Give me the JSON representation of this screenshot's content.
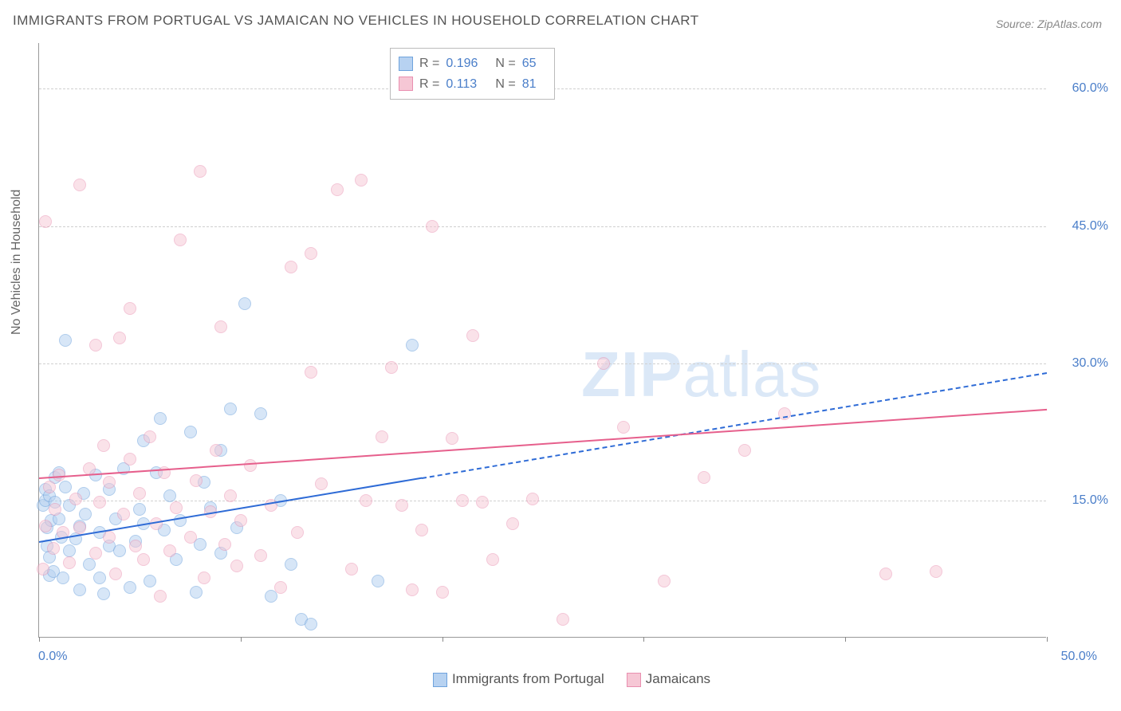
{
  "title": "IMMIGRANTS FROM PORTUGAL VS JAMAICAN NO VEHICLES IN HOUSEHOLD CORRELATION CHART",
  "source_prefix": "Source: ",
  "source_name": "ZipAtlas.com",
  "ylabel": "No Vehicles in Household",
  "watermark_bold": "ZIP",
  "watermark_light": "atlas",
  "chart": {
    "type": "scatter",
    "xlim": [
      0,
      50
    ],
    "ylim": [
      0,
      65
    ],
    "ytick_values": [
      15,
      30,
      45,
      60
    ],
    "ytick_labels": [
      "15.0%",
      "30.0%",
      "45.0%",
      "60.0%"
    ],
    "xtick_values": [
      0,
      10,
      20,
      30,
      40,
      50
    ],
    "x_axis_start_label": "0.0%",
    "x_axis_end_label": "50.0%",
    "background_color": "#ffffff",
    "grid_color": "#d0d0d0",
    "axis_label_color": "#4a7ec9",
    "marker_radius": 8,
    "series": [
      {
        "name": "Immigrants from Portugal",
        "fill_color": "#b7d2f1",
        "stroke_color": "#6fa3dd",
        "trend_color": "#2e6bd6",
        "fill_opacity": 0.55,
        "r": "0.196",
        "n": "65",
        "trend": {
          "x1": 0,
          "y1": 10.5,
          "x2": 19,
          "y2": 17.5,
          "dash_to_x": 50,
          "dash_to_y": 29
        },
        "points": [
          [
            0.2,
            14.5
          ],
          [
            0.3,
            15
          ],
          [
            0.3,
            16.2
          ],
          [
            0.4,
            10
          ],
          [
            0.4,
            12
          ],
          [
            0.5,
            6.8
          ],
          [
            0.5,
            8.8
          ],
          [
            0.5,
            15.5
          ],
          [
            0.6,
            12.8
          ],
          [
            0.7,
            7.2
          ],
          [
            0.8,
            14.8
          ],
          [
            0.8,
            17.5
          ],
          [
            1,
            18
          ],
          [
            1,
            13
          ],
          [
            1.1,
            11
          ],
          [
            1.2,
            6.5
          ],
          [
            1.3,
            32.5
          ],
          [
            1.3,
            16.5
          ],
          [
            1.5,
            9.5
          ],
          [
            1.5,
            14.5
          ],
          [
            1.8,
            10.8
          ],
          [
            2,
            5.2
          ],
          [
            2,
            12.2
          ],
          [
            2.2,
            15.8
          ],
          [
            2.3,
            13.5
          ],
          [
            2.5,
            8
          ],
          [
            2.8,
            17.8
          ],
          [
            3,
            6.5
          ],
          [
            3,
            11.5
          ],
          [
            3.2,
            4.8
          ],
          [
            3.5,
            10
          ],
          [
            3.5,
            16.2
          ],
          [
            3.8,
            13
          ],
          [
            4,
            9.5
          ],
          [
            4.2,
            18.5
          ],
          [
            4.5,
            5.5
          ],
          [
            4.8,
            10.5
          ],
          [
            5,
            14
          ],
          [
            5.2,
            21.5
          ],
          [
            5.2,
            12.5
          ],
          [
            5.5,
            6.2
          ],
          [
            5.8,
            18
          ],
          [
            6,
            24
          ],
          [
            6.2,
            11.8
          ],
          [
            6.5,
            15.5
          ],
          [
            6.8,
            8.5
          ],
          [
            7,
            12.8
          ],
          [
            7.5,
            22.5
          ],
          [
            7.8,
            5
          ],
          [
            8,
            10.2
          ],
          [
            8.2,
            17
          ],
          [
            8.5,
            14.2
          ],
          [
            9,
            20.5
          ],
          [
            9,
            9.2
          ],
          [
            9.5,
            25
          ],
          [
            9.8,
            12
          ],
          [
            10.2,
            36.5
          ],
          [
            11,
            24.5
          ],
          [
            11.5,
            4.5
          ],
          [
            12,
            15
          ],
          [
            12.5,
            8
          ],
          [
            13,
            2
          ],
          [
            13.5,
            1.5
          ],
          [
            16.8,
            6.2
          ],
          [
            18.5,
            32
          ]
        ]
      },
      {
        "name": "Jamaicans",
        "fill_color": "#f6c7d5",
        "stroke_color": "#e98fb0",
        "trend_color": "#e65f8c",
        "fill_opacity": 0.5,
        "r": "0.113",
        "n": "81",
        "trend": {
          "x1": 0,
          "y1": 17.5,
          "x2": 50,
          "y2": 25
        },
        "points": [
          [
            0.2,
            7.5
          ],
          [
            0.3,
            12.2
          ],
          [
            0.5,
            16.5
          ],
          [
            0.7,
            9.8
          ],
          [
            0.8,
            14
          ],
          [
            1,
            17.8
          ],
          [
            1.2,
            11.5
          ],
          [
            1.5,
            8.2
          ],
          [
            1.8,
            15.2
          ],
          [
            2,
            49.5
          ],
          [
            2,
            12
          ],
          [
            2.5,
            18.5
          ],
          [
            2.8,
            9.2
          ],
          [
            3,
            14.8
          ],
          [
            3.2,
            21
          ],
          [
            3.5,
            11
          ],
          [
            3.5,
            17
          ],
          [
            3.8,
            7
          ],
          [
            4,
            32.8
          ],
          [
            4.2,
            13.5
          ],
          [
            4.5,
            19.5
          ],
          [
            4.8,
            10
          ],
          [
            5,
            15.8
          ],
          [
            5.2,
            8.5
          ],
          [
            5.5,
            22
          ],
          [
            5.8,
            12.5
          ],
          [
            6,
            4.5
          ],
          [
            6.2,
            18
          ],
          [
            6.5,
            9.5
          ],
          [
            6.8,
            14.2
          ],
          [
            7,
            43.5
          ],
          [
            7.5,
            11
          ],
          [
            7.8,
            17.2
          ],
          [
            8,
            51
          ],
          [
            8.2,
            6.5
          ],
          [
            8.5,
            13.8
          ],
          [
            8.8,
            20.5
          ],
          [
            9,
            34
          ],
          [
            9.2,
            10.2
          ],
          [
            9.5,
            15.5
          ],
          [
            9.8,
            7.8
          ],
          [
            10,
            12.8
          ],
          [
            10.5,
            18.8
          ],
          [
            11,
            9
          ],
          [
            11.5,
            14.5
          ],
          [
            12,
            5.5
          ],
          [
            12.5,
            40.5
          ],
          [
            12.8,
            11.5
          ],
          [
            13.5,
            29
          ],
          [
            13.5,
            42
          ],
          [
            14,
            16.8
          ],
          [
            14.8,
            49
          ],
          [
            15.5,
            7.5
          ],
          [
            16,
            50
          ],
          [
            16.2,
            15
          ],
          [
            17,
            22
          ],
          [
            17.5,
            29.5
          ],
          [
            18,
            14.5
          ],
          [
            18.5,
            5.2
          ],
          [
            19,
            11.8
          ],
          [
            19.5,
            45
          ],
          [
            20,
            5
          ],
          [
            20.5,
            21.8
          ],
          [
            21,
            15
          ],
          [
            21.5,
            33
          ],
          [
            22,
            14.8
          ],
          [
            22.5,
            8.5
          ],
          [
            23.5,
            12.5
          ],
          [
            24.5,
            15.2
          ],
          [
            26,
            2
          ],
          [
            28,
            30
          ],
          [
            29,
            23
          ],
          [
            31,
            6.2
          ],
          [
            33,
            17.5
          ],
          [
            35,
            20.5
          ],
          [
            37,
            24.5
          ],
          [
            42,
            7
          ],
          [
            44.5,
            7.2
          ],
          [
            0.3,
            45.5
          ],
          [
            4.5,
            36
          ],
          [
            2.8,
            32
          ]
        ]
      }
    ]
  },
  "legend_stats": {
    "r_label": "R =",
    "n_label": "N ="
  },
  "bottom_legend": {
    "items": [
      {
        "label": "Immigrants from Portugal",
        "fill": "#b7d2f1",
        "stroke": "#6fa3dd"
      },
      {
        "label": "Jamaicans",
        "fill": "#f6c7d5",
        "stroke": "#e98fb0"
      }
    ]
  }
}
